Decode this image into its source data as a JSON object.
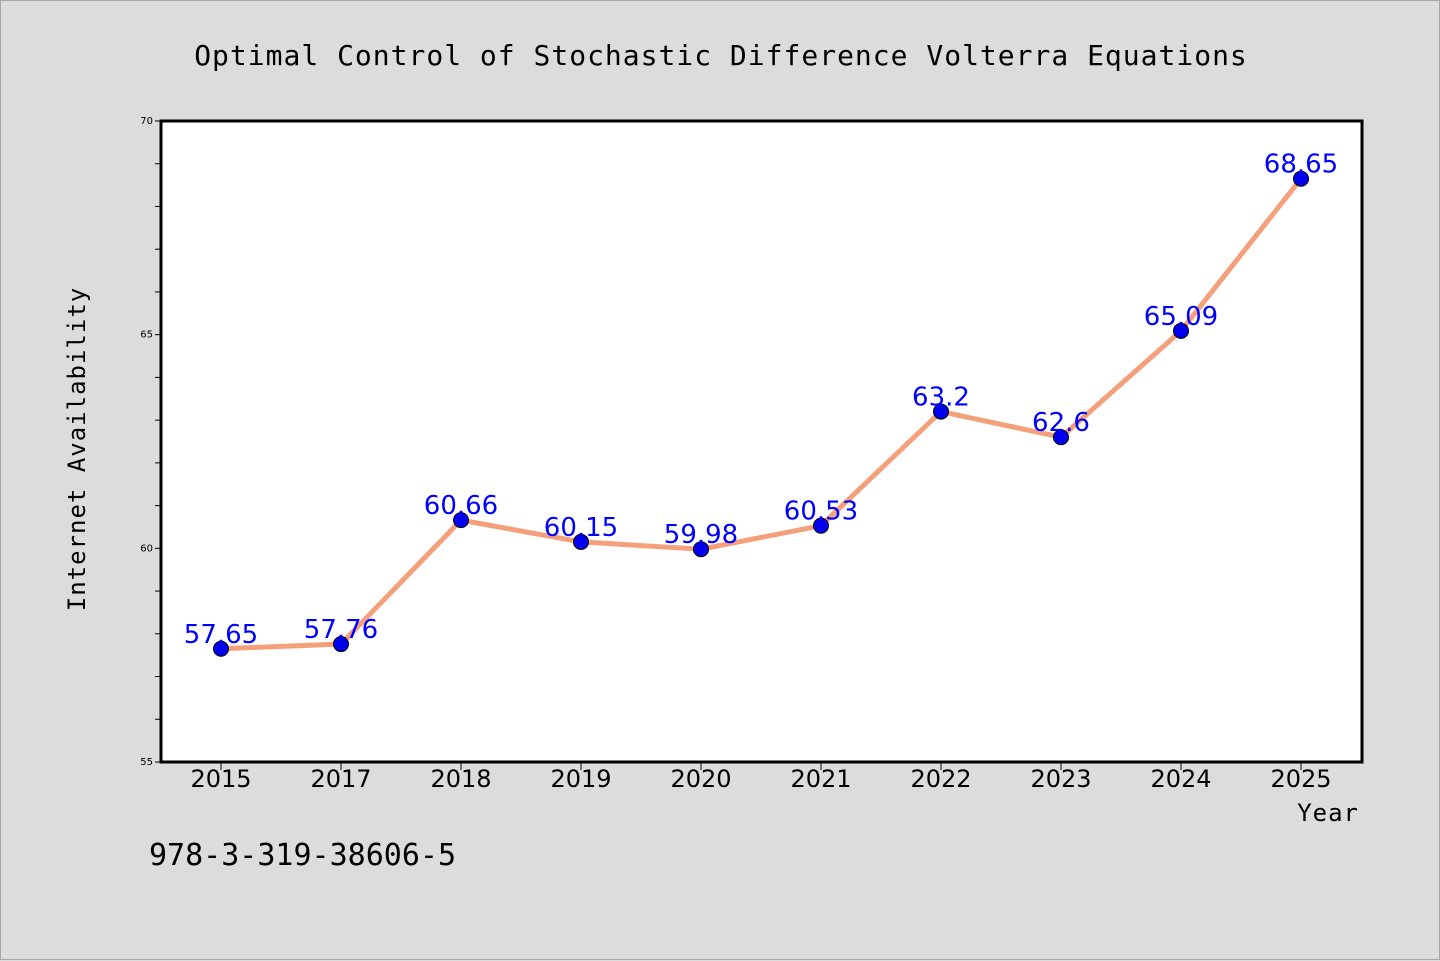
{
  "chart_data": {
    "type": "line",
    "title": "Optimal Control of Stochastic Difference Volterra Equations",
    "xlabel": "Year",
    "ylabel": "Internet Availability",
    "categories": [
      "2015",
      "2017",
      "2018",
      "2019",
      "2020",
      "2021",
      "2022",
      "2023",
      "2024",
      "2025"
    ],
    "values": [
      57.65,
      57.76,
      60.66,
      60.15,
      59.98,
      60.53,
      63.2,
      62.6,
      65.09,
      68.65
    ],
    "data_labels": [
      "57.65",
      "57.76",
      "60.66",
      "60.15",
      "59.98",
      "60.53",
      "63.2",
      "62.6",
      "65.09",
      "68.65"
    ],
    "ylim": [
      55,
      70
    ],
    "yticks": [
      "55",
      "60",
      "65",
      "70"
    ],
    "grid": false,
    "line_color": "#f4a07a",
    "marker_color": "#0000ee",
    "label_color": "#0000ff"
  },
  "footer_text": "978-3-319-38606-5"
}
